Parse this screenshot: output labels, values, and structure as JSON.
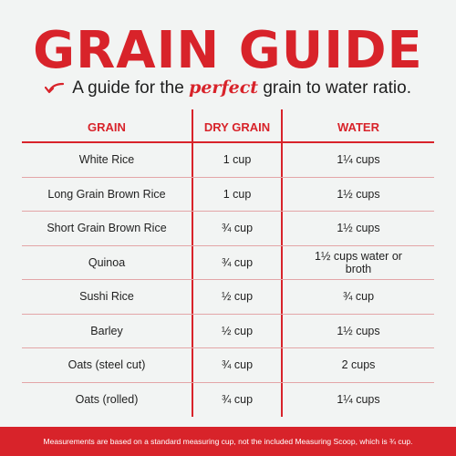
{
  "title": "GRAIN GUIDE",
  "subtitle": {
    "before": "A guide for the ",
    "emphasis": "perfect",
    "after": " grain to water ratio."
  },
  "colors": {
    "accent": "#d8232a",
    "background": "#f2f4f3"
  },
  "icons": {
    "subtitle": "curved-arrow-icon"
  },
  "table": {
    "headers": [
      "GRAIN",
      "DRY GRAIN",
      "WATER"
    ],
    "rows": [
      {
        "grain": "White Rice",
        "dry": "1 cup",
        "water": "1¼ cups"
      },
      {
        "grain": "Long Grain Brown Rice",
        "dry": "1 cup",
        "water": "1½ cups"
      },
      {
        "grain": "Short Grain Brown Rice",
        "dry": "¾ cup",
        "water": "1½ cups"
      },
      {
        "grain": "Quinoa",
        "dry": "¾ cup",
        "water": "1½ cups water or broth"
      },
      {
        "grain": "Sushi Rice",
        "dry": "½ cup",
        "water": "¾ cup"
      },
      {
        "grain": "Barley",
        "dry": "½ cup",
        "water": "1½ cups"
      },
      {
        "grain": "Oats (steel cut)",
        "dry": "¾ cup",
        "water": "2 cups"
      },
      {
        "grain": "Oats (rolled)",
        "dry": "¾ cup",
        "water": "1¼ cups"
      }
    ]
  },
  "footer": "Measurements are based on a standard measuring cup, not the included Measuring Scoop, which is ¾ cup."
}
